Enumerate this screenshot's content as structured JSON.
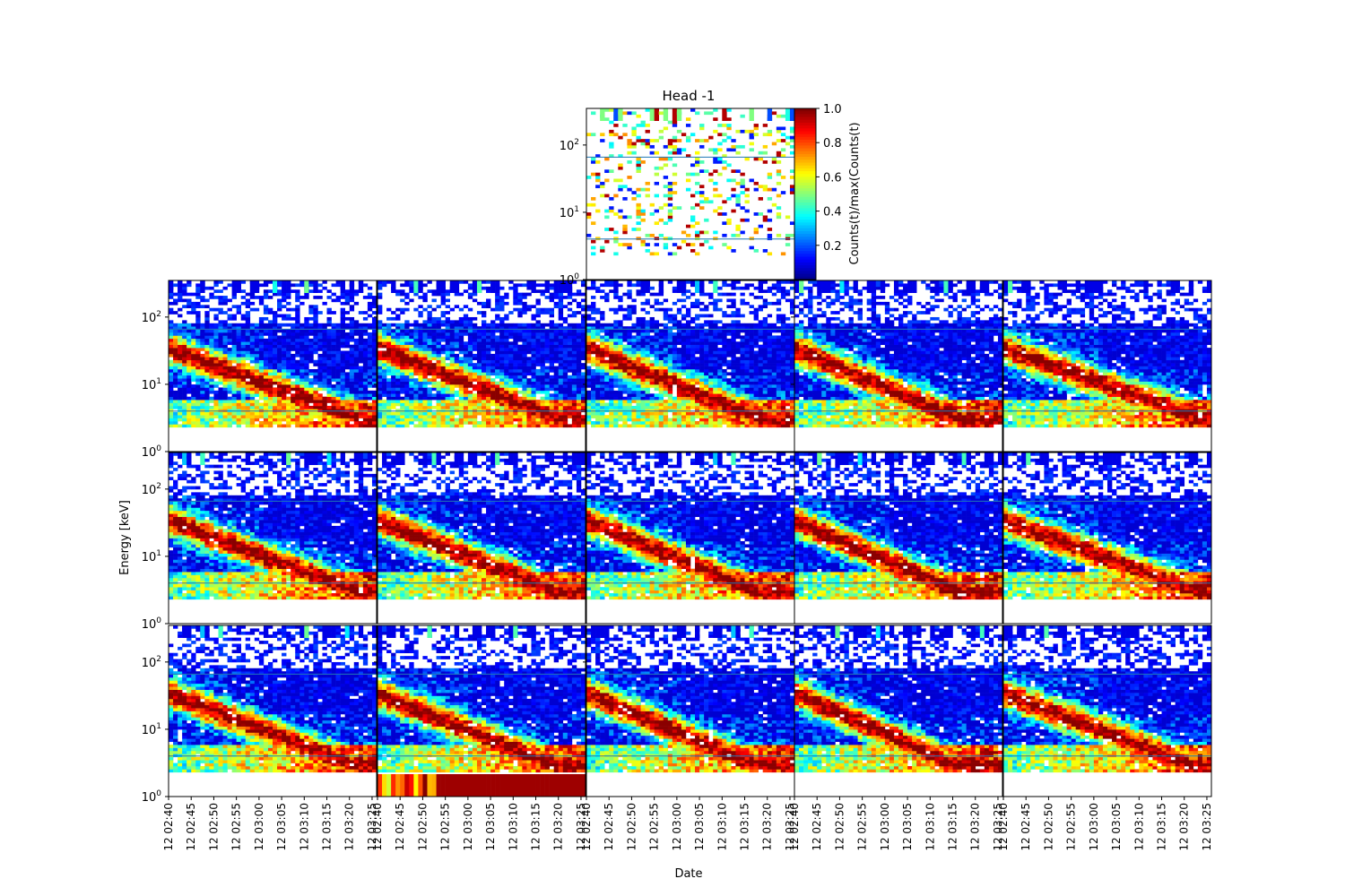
{
  "figure": {
    "title": "Head -1",
    "ylabel": "Energy [keV]",
    "xlabel": "Date",
    "colorbar_label": "Counts(t)/max(Counts(t)",
    "colormap": "jet"
  },
  "chart_data": {
    "type": "heatmap",
    "x_range": [
      "12 02:40",
      "12 03:26"
    ],
    "y_scale": "log",
    "y_range": [
      1,
      350
    ],
    "y_ticks": [
      {
        "value": 1,
        "label": "10^0"
      },
      {
        "value": 10,
        "label": "10^1"
      },
      {
        "value": 100,
        "label": "10^2"
      }
    ],
    "x_ticks": [
      "12 02:40",
      "12 02:45",
      "12 02:50",
      "12 02:55",
      "12 03:00",
      "12 03:05",
      "12 03:10",
      "12 03:15",
      "12 03:20",
      "12 03:25"
    ],
    "colorbar": {
      "range": [
        0,
        1
      ],
      "ticks": [
        "0.2",
        "0.4",
        "0.6",
        "0.8",
        "1.0"
      ]
    },
    "reference_lines_keV": [
      4,
      66
    ],
    "panels": [
      {
        "id": "top",
        "kind": "sparse"
      },
      {
        "id": "r1c1",
        "kind": "dense",
        "feature": "decay"
      },
      {
        "id": "r1c2",
        "kind": "dense",
        "feature": "decay"
      },
      {
        "id": "r1c3",
        "kind": "dense",
        "feature": "decay"
      },
      {
        "id": "r1c4",
        "kind": "dense",
        "feature": "decay"
      },
      {
        "id": "r1c5",
        "kind": "dense",
        "feature": "decay"
      },
      {
        "id": "r2c1",
        "kind": "dense",
        "feature": "decay"
      },
      {
        "id": "r2c2",
        "kind": "dense",
        "feature": "decay"
      },
      {
        "id": "r2c3",
        "kind": "dense",
        "feature": "decay"
      },
      {
        "id": "r2c4",
        "kind": "dense",
        "feature": "decay"
      },
      {
        "id": "r2c5",
        "kind": "dense",
        "feature": "decay"
      },
      {
        "id": "r3c1",
        "kind": "dense",
        "feature": "decay"
      },
      {
        "id": "r3c2",
        "kind": "dense",
        "feature": "decay",
        "low_band": "saturated"
      },
      {
        "id": "r3c3",
        "kind": "dense",
        "feature": "decay"
      },
      {
        "id": "r3c4",
        "kind": "dense",
        "feature": "decay"
      },
      {
        "id": "r3c5",
        "kind": "dense",
        "feature": "decay"
      }
    ]
  }
}
